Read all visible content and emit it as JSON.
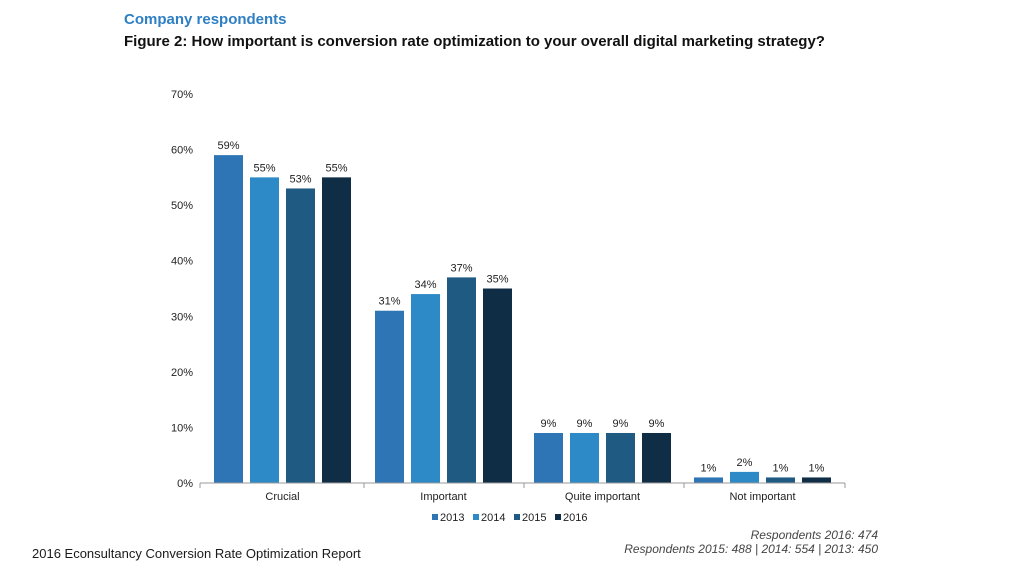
{
  "header": {
    "subtitle": "Company respondents",
    "title": "Figure 2: How important is conversion rate optimization to your overall digital marketing strategy?"
  },
  "chart_data": {
    "type": "bar",
    "categories": [
      "Crucial",
      "Important",
      "Quite important",
      "Not important"
    ],
    "series": [
      {
        "name": "2013",
        "color": "#2e75b6",
        "values": [
          59,
          31,
          9,
          1
        ]
      },
      {
        "name": "2014",
        "color": "#2e8ac7",
        "values": [
          55,
          34,
          9,
          2
        ]
      },
      {
        "name": "2015",
        "color": "#1f5a82",
        "values": [
          53,
          37,
          9,
          1
        ]
      },
      {
        "name": "2016",
        "color": "#0f2d45",
        "values": [
          55,
          35,
          9,
          1
        ]
      }
    ],
    "value_suffix": "%",
    "ylim": [
      0,
      70
    ],
    "yticks": [
      "0%",
      "10%",
      "20%",
      "30%",
      "40%",
      "50%",
      "60%",
      "70%"
    ],
    "legend_position": "bottom"
  },
  "footer": {
    "source": "2016 Econsultancy Conversion Rate Optimization Report",
    "respondents_line1": "Respondents 2016: 474",
    "respondents_line2": "Respondents 2015: 488 | 2014: 554 | 2013: 450"
  }
}
